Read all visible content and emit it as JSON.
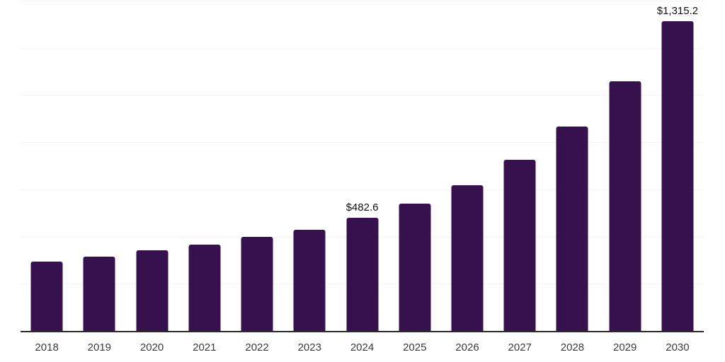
{
  "chart_data": {
    "type": "bar",
    "title": "",
    "xlabel": "",
    "ylabel": "",
    "categories": [
      "2018",
      "2019",
      "2020",
      "2021",
      "2022",
      "2023",
      "2024",
      "2025",
      "2026",
      "2027",
      "2028",
      "2029",
      "2030"
    ],
    "values": [
      297,
      319,
      345,
      369,
      402,
      432,
      482.6,
      542,
      621,
      728,
      869,
      1061,
      1315.2
    ],
    "value_labels": {
      "2024": "$482.6",
      "2030": "$1,315.2"
    },
    "ylim": [
      0,
      1400
    ],
    "grid_step": 200,
    "grid": true,
    "legend": "none",
    "y_axis_tick_labels_visible": false
  },
  "style": {
    "bar_color": "#37114E",
    "axis_line_color": "#2a2a2a",
    "gridline_color": "#f3f3f4",
    "data_label_color": "#111111",
    "tick_label_color": "#3a3a3a",
    "background_color": "#ffffff"
  }
}
